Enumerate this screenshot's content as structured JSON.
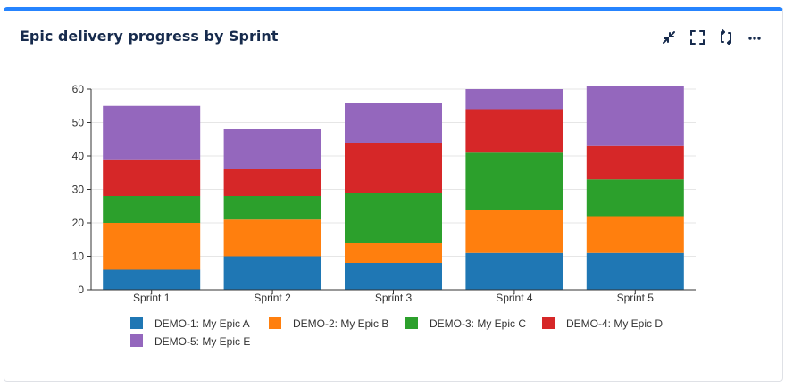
{
  "gadget": {
    "title": "Epic delivery progress by Sprint",
    "accent": "#2684ff",
    "toolbar": [
      {
        "icon": "minimize-icon"
      },
      {
        "icon": "fullscreen-icon"
      },
      {
        "icon": "refresh-icon"
      },
      {
        "icon": "more-options-icon"
      }
    ]
  },
  "chart_data": {
    "type": "bar",
    "stacked": true,
    "categories": [
      "Sprint 1",
      "Sprint 2",
      "Sprint 3",
      "Sprint 4",
      "Sprint 5"
    ],
    "series": [
      {
        "name": "DEMO-1: My Epic A",
        "color": "#1f77b4",
        "values": [
          6,
          10,
          8,
          11,
          11
        ]
      },
      {
        "name": "DEMO-2: My Epic B",
        "color": "#ff7f0e",
        "values": [
          14,
          11,
          6,
          13,
          11
        ]
      },
      {
        "name": "DEMO-3: My Epic C",
        "color": "#2ca02c",
        "values": [
          8,
          7,
          15,
          17,
          11
        ]
      },
      {
        "name": "DEMO-4: My Epic D",
        "color": "#d62728",
        "values": [
          11,
          8,
          15,
          13,
          10
        ]
      },
      {
        "name": "DEMO-5: My Epic E",
        "color": "#9467bd",
        "values": [
          16,
          12,
          12,
          6,
          18
        ]
      }
    ],
    "ylim": [
      0,
      60
    ],
    "yticks": [
      0,
      10,
      20,
      30,
      40,
      50,
      60
    ],
    "grid": true,
    "legend": "bottom",
    "xlabel": "",
    "ylabel": ""
  }
}
